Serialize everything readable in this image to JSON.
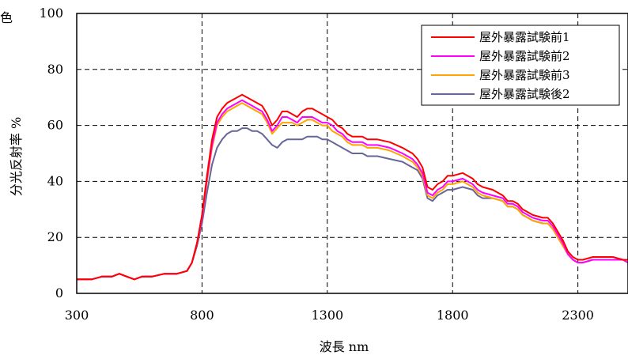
{
  "chart_data": {
    "type": "line",
    "corner_label": "色",
    "title": "",
    "xlabel": "波長 nm",
    "ylabel": "分光反射率 %",
    "xlim": [
      300,
      2500
    ],
    "ylim": [
      0,
      100
    ],
    "xticks": [
      300,
      800,
      1300,
      1800,
      2300
    ],
    "yticks": [
      0,
      20,
      40,
      60,
      80,
      100
    ],
    "grid": true,
    "legend_position": "top-right",
    "series": [
      {
        "name": "屋外暴露試験前1",
        "color": "#ff0000",
        "x": [
          300,
          360,
          400,
          440,
          470,
          500,
          530,
          560,
          600,
          650,
          700,
          740,
          760,
          780,
          800,
          820,
          840,
          860,
          880,
          900,
          920,
          940,
          960,
          980,
          1000,
          1020,
          1040,
          1060,
          1080,
          1100,
          1120,
          1140,
          1160,
          1180,
          1200,
          1220,
          1240,
          1260,
          1280,
          1300,
          1320,
          1340,
          1360,
          1380,
          1400,
          1420,
          1440,
          1460,
          1480,
          1500,
          1550,
          1600,
          1620,
          1640,
          1660,
          1680,
          1700,
          1720,
          1740,
          1760,
          1780,
          1800,
          1840,
          1880,
          1900,
          1920,
          1960,
          2000,
          2020,
          2040,
          2060,
          2080,
          2100,
          2120,
          2160,
          2180,
          2200,
          2220,
          2240,
          2260,
          2280,
          2300,
          2320,
          2360,
          2400,
          2440,
          2480,
          2500
        ],
        "values": [
          5,
          5,
          6,
          6,
          7,
          6,
          5,
          6,
          6,
          7,
          7,
          8,
          11,
          18,
          28,
          42,
          55,
          63,
          66,
          68,
          69,
          70,
          71,
          70,
          69,
          68,
          67,
          64,
          60,
          62,
          65,
          65,
          64,
          63,
          65,
          66,
          66,
          65,
          64,
          63,
          62,
          60,
          59,
          57,
          56,
          56,
          56,
          55,
          55,
          55,
          54,
          52,
          51,
          50,
          48,
          45,
          38,
          37,
          39,
          40,
          42,
          42,
          43,
          41,
          39,
          38,
          37,
          35,
          33,
          33,
          32,
          30,
          29,
          28,
          27,
          27,
          25,
          22,
          19,
          15,
          13,
          12,
          12,
          13,
          13,
          13,
          12,
          12
        ]
      },
      {
        "name": "屋外暴露試験前2",
        "color": "#ff00ff",
        "x": [
          300,
          360,
          400,
          440,
          470,
          500,
          530,
          560,
          600,
          650,
          700,
          740,
          760,
          780,
          800,
          820,
          840,
          860,
          880,
          900,
          920,
          940,
          960,
          980,
          1000,
          1020,
          1040,
          1060,
          1080,
          1100,
          1120,
          1140,
          1160,
          1180,
          1200,
          1220,
          1240,
          1260,
          1280,
          1300,
          1320,
          1340,
          1360,
          1380,
          1400,
          1420,
          1440,
          1460,
          1480,
          1500,
          1550,
          1600,
          1620,
          1640,
          1660,
          1680,
          1700,
          1720,
          1740,
          1760,
          1780,
          1800,
          1840,
          1880,
          1900,
          1920,
          1960,
          2000,
          2020,
          2040,
          2060,
          2080,
          2100,
          2120,
          2160,
          2180,
          2200,
          2220,
          2240,
          2260,
          2280,
          2300,
          2320,
          2360,
          2400,
          2440,
          2480,
          2500
        ],
        "values": [
          5,
          5,
          6,
          6,
          7,
          6,
          5,
          6,
          6,
          7,
          7,
          8,
          11,
          18,
          27,
          41,
          53,
          61,
          64,
          66,
          67,
          68,
          69,
          68,
          67,
          66,
          65,
          62,
          58,
          60,
          63,
          63,
          62,
          61,
          63,
          63,
          63,
          62,
          61,
          61,
          60,
          58,
          57,
          55,
          54,
          54,
          54,
          53,
          53,
          53,
          52,
          50,
          49,
          48,
          46,
          43,
          36,
          35,
          37,
          38,
          40,
          40,
          41,
          39,
          37,
          36,
          35,
          34,
          32,
          32,
          31,
          29,
          28,
          27,
          26,
          26,
          24,
          21,
          18,
          14,
          12,
          11,
          11,
          12,
          12,
          12,
          12,
          11
        ]
      },
      {
        "name": "屋外暴露試験前3",
        "color": "#ffa500",
        "x": [
          300,
          360,
          400,
          440,
          470,
          500,
          530,
          560,
          600,
          650,
          700,
          740,
          760,
          780,
          800,
          820,
          840,
          860,
          880,
          900,
          920,
          940,
          960,
          980,
          1000,
          1020,
          1040,
          1060,
          1080,
          1100,
          1120,
          1140,
          1160,
          1180,
          1200,
          1220,
          1240,
          1260,
          1280,
          1300,
          1320,
          1340,
          1360,
          1380,
          1400,
          1420,
          1440,
          1460,
          1480,
          1500,
          1550,
          1600,
          1620,
          1640,
          1660,
          1680,
          1700,
          1720,
          1740,
          1760,
          1780,
          1800,
          1840,
          1880,
          1900,
          1920,
          1960,
          2000,
          2020,
          2040,
          2060,
          2080,
          2100,
          2120,
          2160,
          2180,
          2200,
          2220,
          2240,
          2260,
          2280,
          2300,
          2320,
          2360,
          2400,
          2440,
          2480,
          2500
        ],
        "values": [
          5,
          5,
          6,
          6,
          7,
          6,
          5,
          6,
          6,
          7,
          7,
          8,
          11,
          18,
          27,
          40,
          52,
          60,
          63,
          65,
          66,
          67,
          68,
          67,
          66,
          65,
          64,
          61,
          57,
          59,
          61,
          61,
          61,
          60,
          61,
          62,
          62,
          61,
          60,
          60,
          58,
          57,
          56,
          54,
          53,
          53,
          53,
          52,
          52,
          52,
          51,
          49,
          48,
          47,
          45,
          42,
          35,
          34,
          36,
          37,
          39,
          39,
          40,
          38,
          36,
          35,
          34,
          33,
          31,
          31,
          30,
          28,
          27,
          26,
          25,
          25,
          23,
          20,
          17,
          14,
          12,
          11,
          11,
          12,
          12,
          12,
          12,
          11
        ]
      },
      {
        "name": "屋外暴露試験後2",
        "color": "#666699",
        "x": [
          300,
          360,
          400,
          440,
          470,
          500,
          530,
          560,
          600,
          650,
          700,
          740,
          760,
          780,
          800,
          820,
          840,
          860,
          880,
          900,
          920,
          940,
          960,
          980,
          1000,
          1020,
          1040,
          1060,
          1080,
          1100,
          1120,
          1140,
          1160,
          1180,
          1200,
          1220,
          1240,
          1260,
          1280,
          1300,
          1320,
          1340,
          1360,
          1380,
          1400,
          1420,
          1440,
          1460,
          1480,
          1500,
          1550,
          1600,
          1620,
          1640,
          1660,
          1680,
          1700,
          1720,
          1740,
          1760,
          1780,
          1800,
          1840,
          1880,
          1900,
          1920,
          1960,
          2000,
          2020,
          2040,
          2060,
          2080,
          2100,
          2120,
          2160,
          2180,
          2200,
          2220,
          2240,
          2260,
          2280,
          2300,
          2320,
          2360,
          2400,
          2440,
          2480,
          2500
        ],
        "values": [
          5,
          5,
          6,
          6,
          7,
          6,
          5,
          6,
          6,
          7,
          7,
          8,
          11,
          17,
          25,
          36,
          46,
          52,
          55,
          57,
          58,
          58,
          59,
          59,
          58,
          58,
          57,
          55,
          53,
          52,
          54,
          55,
          55,
          55,
          55,
          56,
          56,
          56,
          55,
          55,
          54,
          53,
          52,
          51,
          50,
          50,
          50,
          49,
          49,
          49,
          48,
          47,
          46,
          45,
          44,
          41,
          34,
          33,
          35,
          36,
          37,
          37,
          38,
          37,
          35,
          34,
          34,
          33,
          31,
          31,
          30,
          28,
          27,
          26,
          25,
          25,
          23,
          20,
          17,
          14,
          12,
          11,
          11,
          12,
          12,
          12,
          12,
          11
        ]
      }
    ]
  }
}
